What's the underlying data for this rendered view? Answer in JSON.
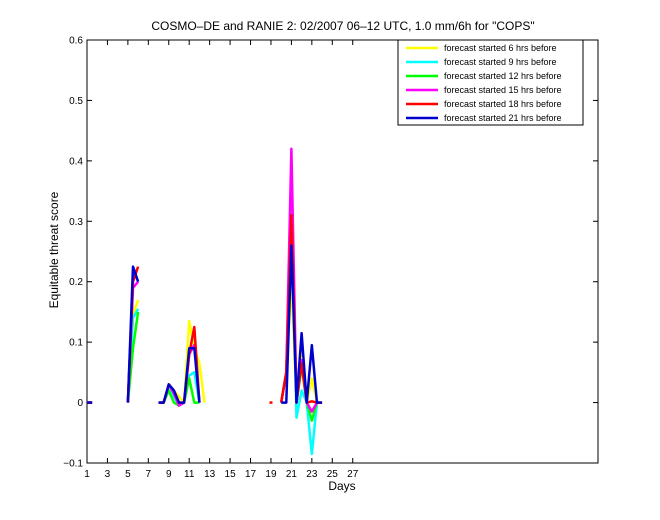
{
  "chart_data": {
    "type": "line",
    "title": "COSMO–DE and RANIE 2: 02/2007 06–12 UTC, 1.0 mm/6h for \"COPS\"",
    "xlabel": "Days",
    "ylabel": "Equitable threat score",
    "xlim": [
      1,
      51
    ],
    "ylim": [
      -0.1,
      0.6
    ],
    "x_ticks": [
      1,
      3,
      5,
      7,
      9,
      11,
      13,
      15,
      17,
      19,
      21,
      23,
      25,
      27
    ],
    "y_ticks": [
      -0.1,
      0,
      0.1,
      0.2,
      0.3,
      0.4,
      0.5,
      0.6
    ],
    "y_tick_labels": [
      "−0.1",
      "0",
      "0.1",
      "0.2",
      "0.3",
      "0.4",
      "0.5",
      "0.6"
    ],
    "grid": false,
    "legend_position": "top-right",
    "x": [
      1,
      1.5,
      2,
      2.5,
      3,
      3.5,
      4,
      4.5,
      5,
      5.5,
      6,
      6.5,
      7,
      7.5,
      8,
      8.5,
      9,
      9.5,
      10,
      10.5,
      11,
      11.5,
      12,
      12.5,
      13,
      13.5,
      14,
      14.5,
      15,
      15.5,
      16,
      16.5,
      17,
      17.5,
      18,
      18.5,
      19,
      19.5,
      20,
      20.5,
      21,
      21.5,
      22,
      22.5,
      23,
      23.5,
      24,
      24.5,
      25,
      25.5,
      26,
      26.5,
      27,
      27.5,
      28,
      28.5,
      29,
      29.5,
      30,
      30.5,
      31
    ],
    "series": [
      {
        "name": "forecast started  6 hrs before",
        "color": "#ffff00",
        "values": [
          0,
          0,
          null,
          null,
          null,
          null,
          null,
          null,
          0,
          0.145,
          0.17,
          null,
          null,
          null,
          0,
          0,
          0.03,
          0.02,
          0.01,
          0,
          0.135,
          0.09,
          0.065,
          0,
          null,
          null,
          null,
          null,
          null,
          null,
          null,
          null,
          null,
          null,
          null,
          null,
          null,
          null,
          0,
          0.05,
          0.2,
          0,
          0.09,
          0,
          0.04,
          0,
          0,
          null,
          null,
          null,
          null,
          null,
          null,
          null,
          null,
          null,
          null,
          null,
          null,
          null,
          null
        ]
      },
      {
        "name": "forecast started  9 hrs before",
        "color": "#00ffff",
        "values": [
          0,
          0,
          null,
          null,
          null,
          null,
          null,
          null,
          0,
          0.14,
          0.155,
          null,
          null,
          null,
          0,
          0,
          0.03,
          0.01,
          -0.005,
          0,
          0.045,
          0.05,
          0,
          null,
          null,
          null,
          null,
          null,
          null,
          null,
          null,
          null,
          null,
          null,
          null,
          null,
          null,
          null,
          0,
          0.05,
          0.33,
          -0.025,
          0.02,
          0,
          -0.085,
          0,
          0,
          null,
          null,
          null,
          null,
          null,
          null,
          null,
          null,
          null,
          null,
          null,
          null,
          null,
          null
        ]
      },
      {
        "name": "forecast started 12 hrs before",
        "color": "#00ff00",
        "values": [
          0,
          0,
          null,
          null,
          null,
          null,
          null,
          null,
          0,
          0.09,
          0.15,
          null,
          null,
          null,
          0,
          0,
          0.02,
          0,
          -0.005,
          0,
          0.04,
          0,
          0,
          null,
          null,
          null,
          null,
          null,
          null,
          null,
          null,
          null,
          null,
          null,
          null,
          null,
          null,
          null,
          0,
          0.05,
          0.34,
          0,
          0.06,
          0,
          -0.03,
          0,
          0,
          null,
          null,
          null,
          null,
          null,
          null,
          null,
          null,
          null,
          null,
          null,
          null,
          null,
          null
        ]
      },
      {
        "name": "forecast started 15 hrs before",
        "color": "#ff00ff",
        "values": [
          0,
          0,
          null,
          null,
          null,
          null,
          null,
          null,
          0,
          0.19,
          0.2,
          null,
          null,
          null,
          0,
          0,
          0.03,
          0.015,
          -0.005,
          0,
          0.08,
          0.095,
          0,
          null,
          null,
          null,
          null,
          null,
          null,
          null,
          null,
          null,
          null,
          null,
          null,
          null,
          null,
          null,
          0,
          0.05,
          0.42,
          0,
          0.07,
          0,
          -0.015,
          0,
          0,
          null,
          null,
          null,
          null,
          null,
          null,
          null,
          null,
          null,
          null,
          null,
          null,
          null,
          null
        ]
      },
      {
        "name": "forecast started 18 hrs before",
        "color": "#ff0000",
        "values": [
          0,
          0,
          null,
          null,
          null,
          null,
          null,
          null,
          0,
          0.2,
          0.225,
          null,
          null,
          null,
          0,
          0,
          0.03,
          0.02,
          0,
          0,
          0.08,
          0.125,
          0,
          null,
          null,
          null,
          null,
          null,
          null,
          null,
          null,
          null,
          null,
          null,
          null,
          null,
          null,
          null,
          0,
          0.05,
          0.31,
          0,
          0.065,
          0,
          0.002,
          0,
          0,
          null,
          null,
          null,
          null,
          null,
          null,
          null,
          null,
          null,
          null,
          null,
          null,
          null,
          null
        ]
      },
      {
        "name": "forecast started 21 hrs before",
        "color": "#0000cc",
        "values": [
          0,
          0,
          null,
          null,
          null,
          null,
          null,
          null,
          0,
          0.225,
          0.2,
          null,
          null,
          null,
          0,
          0,
          0.03,
          0.02,
          0,
          0,
          0.09,
          0.09,
          0,
          null,
          null,
          null,
          null,
          null,
          null,
          null,
          null,
          null,
          null,
          null,
          null,
          null,
          null,
          null,
          0,
          0,
          0.26,
          0,
          0.115,
          0,
          0.095,
          0,
          0,
          null,
          null,
          null,
          null,
          null,
          null,
          null,
          null,
          null,
          null,
          null,
          null,
          null,
          null
        ]
      }
    ],
    "isolated_points": [
      {
        "series": "forecast started 18 hrs before",
        "x": 19,
        "y": 0
      }
    ]
  }
}
